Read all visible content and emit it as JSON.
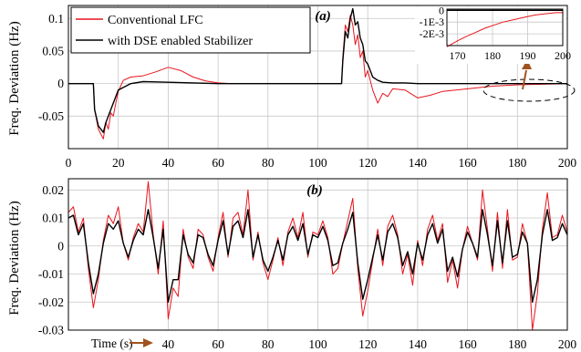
{
  "colors": {
    "conventional": "#e8141c",
    "dse": "#000000",
    "arrow": "#a0521e",
    "grid": "#c8c8c8",
    "axis": "#000000"
  },
  "chart_data": [
    {
      "type": "line",
      "panel_label": "(a)",
      "ylabel": "Freq. Deviation (Hz)",
      "xlim": [
        0,
        200
      ],
      "ylim": [
        -0.1,
        0.12
      ],
      "x_ticks": [
        0,
        20,
        40,
        60,
        80,
        100,
        120,
        140,
        160,
        180,
        200
      ],
      "x_tick_labels": [
        "0",
        "20",
        "40",
        "60",
        "80",
        "100",
        "120",
        "140",
        "160",
        "180",
        "200"
      ],
      "y_ticks": [
        -0.05,
        0,
        0.05,
        0.1
      ],
      "y_tick_labels": [
        "-0.05",
        "0",
        "0.05",
        "0.1"
      ],
      "grid": true,
      "legend_position": "top-left",
      "series": [
        {
          "name": "Conventional LFC",
          "color": "#e8141c",
          "x": [
            0,
            10,
            10.5,
            12,
            14,
            15,
            16,
            17,
            18,
            19,
            20,
            22,
            25,
            30,
            35,
            40,
            45,
            50,
            55,
            60,
            65,
            70,
            80,
            90,
            100,
            109.5,
            110,
            111,
            112,
            113,
            114,
            115,
            116,
            117,
            118,
            119,
            120,
            122,
            124,
            126,
            128,
            130,
            135,
            140,
            145,
            150,
            160,
            170,
            180,
            190,
            200
          ],
          "y": [
            0,
            0,
            -0.04,
            -0.07,
            -0.085,
            -0.06,
            -0.07,
            -0.045,
            -0.05,
            -0.03,
            -0.012,
            0.005,
            0.01,
            0.012,
            0.018,
            0.025,
            0.02,
            0.01,
            0.004,
            0.001,
            0,
            0,
            0,
            0,
            0,
            0,
            0.04,
            0.09,
            0.08,
            0.105,
            0.09,
            0.06,
            0.075,
            0.04,
            0.05,
            0.01,
            0.02,
            -0.01,
            -0.03,
            -0.015,
            -0.02,
            -0.008,
            -0.01,
            -0.022,
            -0.018,
            -0.012,
            -0.008,
            -0.004,
            -0.002,
            -0.001,
            0
          ]
        },
        {
          "name": "with DSE enabled Stabilizer",
          "color": "#000000",
          "x": [
            0,
            10,
            10.5,
            12,
            14,
            15,
            16,
            18,
            20,
            25,
            30,
            40,
            50,
            60,
            80,
            100,
            109.5,
            110,
            111,
            112,
            113,
            114,
            115,
            116,
            117,
            118,
            119,
            120,
            122,
            124,
            126,
            130,
            135,
            140,
            150,
            160,
            170,
            180,
            190,
            200
          ],
          "y": [
            0,
            0,
            -0.04,
            -0.065,
            -0.075,
            -0.06,
            -0.05,
            -0.03,
            -0.01,
            0,
            0.003,
            0.002,
            0.001,
            0,
            0,
            0,
            0,
            0.035,
            0.08,
            0.07,
            0.1,
            0.115,
            0.09,
            0.095,
            0.07,
            0.06,
            0.035,
            0.03,
            0.01,
            0.005,
            0.002,
            0.001,
            0.001,
            0,
            0,
            0,
            0,
            0,
            0,
            0
          ]
        }
      ],
      "inset": {
        "xlim": [
          167,
          200
        ],
        "ylim": [
          -0.003,
          0.0001
        ],
        "x_ticks": [
          170,
          180,
          190,
          200
        ],
        "x_tick_labels": [
          "170",
          "180",
          "190",
          "200"
        ],
        "y_ticks": [
          0,
          -0.001,
          -0.002
        ],
        "y_tick_labels": [
          "0",
          "-1E-3",
          "-2E-3"
        ],
        "series": [
          {
            "name": "Conventional LFC",
            "x": [
              167,
              170,
              172,
              175,
              178,
              180,
              183,
              186,
              189,
              192,
              195,
              198,
              200
            ],
            "y": [
              -0.0031,
              -0.0026,
              -0.0023,
              -0.0019,
              -0.0015,
              -0.0013,
              -0.001,
              -0.0008,
              -0.0006,
              -0.0004,
              -0.0003,
              -0.0002,
              -0.0002
            ]
          },
          {
            "name": "with DSE enabled Stabilizer",
            "x": [
              167,
              170,
              180,
              190,
              200
            ],
            "y": [
              0,
              0,
              0,
              0,
              0
            ]
          }
        ]
      }
    },
    {
      "type": "line",
      "panel_label": "(b)",
      "ylabel": "Freq. Deviation (Hz)",
      "xlabel": "Time (s)",
      "xlim": [
        0,
        200
      ],
      "ylim": [
        -0.03,
        0.024
      ],
      "x_ticks": [
        40,
        60,
        80,
        100,
        120,
        140,
        160,
        180,
        200
      ],
      "x_tick_labels": [
        "40",
        "60",
        "80",
        "100",
        "120",
        "140",
        "160",
        "180",
        "200"
      ],
      "y_ticks": [
        -0.03,
        -0.02,
        -0.01,
        0,
        0.01,
        0.02
      ],
      "y_tick_labels": [
        "-0.03",
        "-0.02",
        "-0.01",
        "0",
        "0.01",
        "0.02"
      ],
      "grid": true,
      "series": [
        {
          "name": "Conventional LFC",
          "color": "#e8141c",
          "x": [
            0,
            2,
            4,
            6,
            8,
            10,
            12,
            14,
            16,
            18,
            20,
            22,
            24,
            26,
            28,
            30,
            32,
            34,
            36,
            38,
            40,
            42,
            44,
            46,
            48,
            50,
            52,
            54,
            56,
            58,
            60,
            62,
            64,
            66,
            68,
            70,
            72,
            74,
            76,
            78,
            80,
            82,
            84,
            86,
            88,
            90,
            92,
            94,
            96,
            98,
            100,
            102,
            104,
            106,
            108,
            110,
            112,
            114,
            116,
            118,
            120,
            122,
            124,
            126,
            128,
            130,
            132,
            134,
            136,
            138,
            140,
            142,
            144,
            146,
            148,
            150,
            152,
            154,
            156,
            158,
            160,
            162,
            164,
            166,
            168,
            170,
            172,
            174,
            176,
            178,
            180,
            182,
            184,
            186,
            188,
            190,
            192,
            194,
            196,
            198,
            200
          ],
          "y": [
            0.012,
            0.014,
            0.005,
            0.01,
            -0.008,
            -0.022,
            -0.012,
            0.002,
            0.011,
            0.008,
            0.014,
            0.001,
            -0.005,
            0.003,
            0.008,
            0.005,
            0.023,
            0.004,
            -0.01,
            0.009,
            -0.026,
            -0.015,
            -0.018,
            0.006,
            -0.004,
            -0.008,
            0.006,
            0.004,
            -0.004,
            -0.009,
            0.003,
            0.012,
            -0.004,
            0.01,
            0.012,
            0.004,
            0.02,
            -0.005,
            0.005,
            -0.006,
            -0.012,
            -0.005,
            0.003,
            -0.007,
            0.005,
            0.01,
            0.003,
            0.012,
            -0.004,
            0.005,
            0.004,
            0.009,
            0.003,
            -0.01,
            -0.008,
            0.001,
            0.009,
            0.017,
            -0.008,
            -0.025,
            -0.016,
            -0.005,
            0.006,
            -0.007,
            0.007,
            0.011,
            0.004,
            -0.01,
            -0.003,
            -0.014,
            0.002,
            -0.007,
            0.006,
            0.011,
            0.002,
            0.008,
            -0.013,
            -0.005,
            -0.015,
            -0.001,
            0.007,
            0.001,
            -0.005,
            0.02,
            0.006,
            -0.009,
            0.012,
            -0.008,
            0.013,
            -0.005,
            -0.004,
            0.008,
            0.001,
            -0.03,
            -0.017,
            0.006,
            0.019,
            0.003,
            0.004,
            0.011,
            0.005
          ]
        },
        {
          "name": "with DSE enabled Stabilizer",
          "color": "#000000",
          "x": [
            0,
            2,
            4,
            6,
            8,
            10,
            12,
            14,
            16,
            18,
            20,
            22,
            24,
            26,
            28,
            30,
            32,
            34,
            36,
            38,
            40,
            42,
            44,
            46,
            48,
            50,
            52,
            54,
            56,
            58,
            60,
            62,
            64,
            66,
            68,
            70,
            72,
            74,
            76,
            78,
            80,
            82,
            84,
            86,
            88,
            90,
            92,
            94,
            96,
            98,
            100,
            102,
            104,
            106,
            108,
            110,
            112,
            114,
            116,
            118,
            120,
            122,
            124,
            126,
            128,
            130,
            132,
            134,
            136,
            138,
            140,
            142,
            144,
            146,
            148,
            150,
            152,
            154,
            156,
            158,
            160,
            162,
            164,
            166,
            168,
            170,
            172,
            174,
            176,
            178,
            180,
            182,
            184,
            186,
            188,
            190,
            192,
            194,
            196,
            198,
            200
          ],
          "y": [
            0.01,
            0.011,
            0.004,
            0.008,
            -0.006,
            -0.017,
            -0.01,
            0.001,
            0.008,
            0.006,
            0.009,
            0.001,
            -0.004,
            0.002,
            0.006,
            0.004,
            0.013,
            0.003,
            -0.008,
            0.006,
            -0.02,
            -0.012,
            -0.012,
            0.004,
            -0.003,
            -0.006,
            0.004,
            0.003,
            -0.003,
            -0.007,
            0.002,
            0.009,
            -0.003,
            0.007,
            0.009,
            0.003,
            0.013,
            -0.004,
            0.004,
            -0.005,
            -0.009,
            -0.004,
            0.002,
            -0.005,
            0.004,
            0.007,
            0.002,
            0.008,
            -0.003,
            0.004,
            0.003,
            0.007,
            0.002,
            -0.007,
            -0.006,
            0.001,
            0.006,
            0.012,
            -0.006,
            -0.019,
            -0.012,
            -0.004,
            0.004,
            -0.005,
            0.005,
            0.008,
            0.003,
            -0.007,
            -0.002,
            -0.01,
            0.001,
            -0.005,
            0.004,
            0.008,
            0.001,
            0.006,
            -0.009,
            -0.004,
            -0.011,
            -0.001,
            0.005,
            0.001,
            -0.004,
            0.013,
            0.004,
            -0.007,
            0.009,
            -0.006,
            0.009,
            -0.004,
            -0.003,
            0.005,
            0.001,
            -0.02,
            -0.012,
            0.004,
            0.013,
            0.002,
            0.003,
            0.008,
            0.004
          ]
        }
      ]
    }
  ]
}
